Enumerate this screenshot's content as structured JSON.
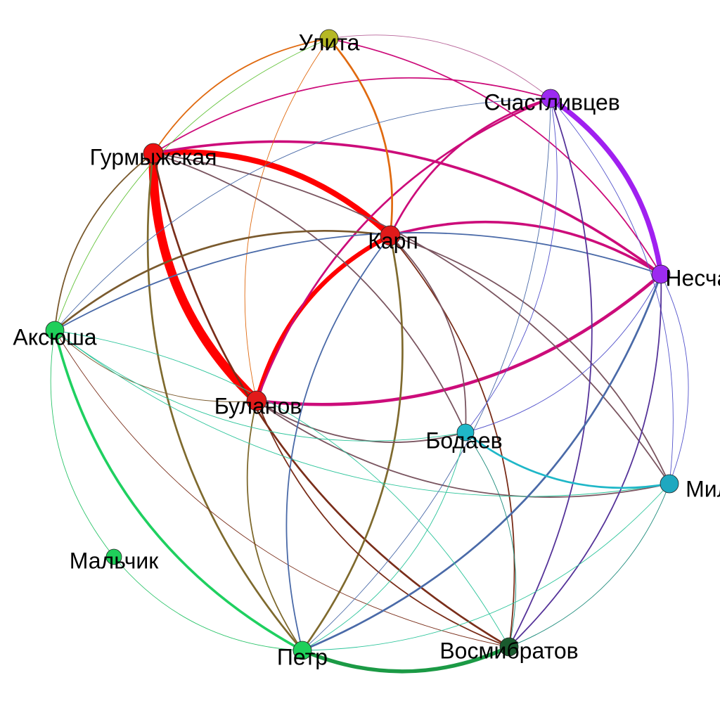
{
  "nodes": [
    {
      "id": "ulita",
      "label": "Улита",
      "color": "#b5b825"
    },
    {
      "id": "schast",
      "label": "Счастливцев",
      "color": "#9c2bf0"
    },
    {
      "id": "gurm",
      "label": "Гурмыжская",
      "color": "#ee1010"
    },
    {
      "id": "karp",
      "label": "Карп",
      "color": "#e11a1a"
    },
    {
      "id": "nesch",
      "label": "Несчастливцев",
      "color": "#9c2bf0"
    },
    {
      "id": "aks",
      "label": "Аксюша",
      "color": "#1fcf5a"
    },
    {
      "id": "bul",
      "label": "Буланов",
      "color": "#e11a1a"
    },
    {
      "id": "bod",
      "label": "Бодаев",
      "color": "#1fb7c8"
    },
    {
      "id": "mil",
      "label": "Милонов",
      "color": "#1fa8c0"
    },
    {
      "id": "malch",
      "label": "Мальчик",
      "color": "#1fcf5a"
    },
    {
      "id": "petr",
      "label": "Петр",
      "color": "#1fcf5a"
    },
    {
      "id": "vosm",
      "label": "Восмибратов",
      "color": "#1a5a2e"
    }
  ],
  "edges": [
    {
      "source": "gurm",
      "target": "bul",
      "weight": 14,
      "color": "#ff0000"
    },
    {
      "source": "gurm",
      "target": "karp",
      "weight": 9,
      "color": "#ff0000"
    },
    {
      "source": "karp",
      "target": "bul",
      "weight": 7,
      "color": "#ff0000"
    },
    {
      "source": "schast",
      "target": "nesch",
      "weight": 8,
      "color": "#a020f0"
    },
    {
      "source": "petr",
      "target": "vosm",
      "weight": 6,
      "color": "#1b9a45"
    },
    {
      "source": "gurm",
      "target": "nesch",
      "weight": 4,
      "color": "#cc0c7a"
    },
    {
      "source": "karp",
      "target": "nesch",
      "weight": 4,
      "color": "#cc0c7a"
    },
    {
      "source": "bul",
      "target": "nesch",
      "weight": 5,
      "color": "#cc0c7a"
    },
    {
      "source": "bul",
      "target": "schast",
      "weight": 3,
      "color": "#cc0c7a"
    },
    {
      "source": "karp",
      "target": "schast",
      "weight": 3,
      "color": "#cc0c7a"
    },
    {
      "source": "gurm",
      "target": "schast",
      "weight": 2,
      "color": "#cc0c7a"
    },
    {
      "source": "ulita",
      "target": "nesch",
      "weight": 2,
      "color": "#cc0c7a"
    },
    {
      "source": "ulita",
      "target": "schast",
      "weight": 1,
      "color": "#b8669a"
    },
    {
      "source": "ulita",
      "target": "karp",
      "weight": 3,
      "color": "#e06a10"
    },
    {
      "source": "ulita",
      "target": "gurm",
      "weight": 2,
      "color": "#e06a10"
    },
    {
      "source": "ulita",
      "target": "bul",
      "weight": 1,
      "color": "#e06a10"
    },
    {
      "source": "ulita",
      "target": "aks",
      "weight": 1,
      "color": "#63c33a"
    },
    {
      "source": "gurm",
      "target": "aks",
      "weight": 2,
      "color": "#7a5a2e"
    },
    {
      "source": "gurm",
      "target": "petr",
      "weight": 3,
      "color": "#7f6a2e"
    },
    {
      "source": "gurm",
      "target": "vosm",
      "weight": 3,
      "color": "#7a2e1a"
    },
    {
      "source": "gurm",
      "target": "bod",
      "weight": 2,
      "color": "#7a5560"
    },
    {
      "source": "gurm",
      "target": "mil",
      "weight": 2,
      "color": "#7a5560"
    },
    {
      "source": "karp",
      "target": "aks",
      "weight": 3,
      "color": "#7a5a2e"
    },
    {
      "source": "karp",
      "target": "petr",
      "weight": 3,
      "color": "#7f6a2e"
    },
    {
      "source": "karp",
      "target": "vosm",
      "weight": 2,
      "color": "#7a2e1a"
    },
    {
      "source": "karp",
      "target": "bod",
      "weight": 2,
      "color": "#7a5560"
    },
    {
      "source": "karp",
      "target": "mil",
      "weight": 2,
      "color": "#7a5560"
    },
    {
      "source": "bul",
      "target": "petr",
      "weight": 2,
      "color": "#7f6a2e"
    },
    {
      "source": "bul",
      "target": "vosm",
      "weight": 2,
      "color": "#7a2e1a"
    },
    {
      "source": "bul",
      "target": "bod",
      "weight": 2,
      "color": "#7a5560"
    },
    {
      "source": "bul",
      "target": "mil",
      "weight": 2,
      "color": "#7a5560"
    },
    {
      "source": "aks",
      "target": "bul",
      "weight": 1,
      "color": "#7a5a2e"
    },
    {
      "source": "aks",
      "target": "vosm",
      "weight": 1,
      "color": "#7a2e1a"
    },
    {
      "source": "aks",
      "target": "schast",
      "weight": 1,
      "color": "#4a6aa8"
    },
    {
      "source": "aks",
      "target": "nesch",
      "weight": 2,
      "color": "#4a6aa8"
    },
    {
      "source": "aks",
      "target": "petr",
      "weight": 4,
      "color": "#1fd060"
    },
    {
      "source": "aks",
      "target": "malch",
      "weight": 1,
      "color": "#2bc46a"
    },
    {
      "source": "aks",
      "target": "bod",
      "weight": 1,
      "color": "#2bc49a"
    },
    {
      "source": "aks",
      "target": "mil",
      "weight": 1,
      "color": "#2bc49a"
    },
    {
      "source": "malch",
      "target": "petr",
      "weight": 1,
      "color": "#2bc46a"
    },
    {
      "source": "karp",
      "target": "petr",
      "weight": 2,
      "color": "#4a6aa8"
    },
    {
      "source": "schast",
      "target": "petr",
      "weight": 1,
      "color": "#4a6aa8"
    },
    {
      "source": "schast",
      "target": "vosm",
      "weight": 2,
      "color": "#553399"
    },
    {
      "source": "schast",
      "target": "bod",
      "weight": 1,
      "color": "#5555cc"
    },
    {
      "source": "schast",
      "target": "mil",
      "weight": 1,
      "color": "#5555cc"
    },
    {
      "source": "nesch",
      "target": "petr",
      "weight": 3,
      "color": "#4a6aa8"
    },
    {
      "source": "nesch",
      "target": "vosm",
      "weight": 2,
      "color": "#553399"
    },
    {
      "source": "nesch",
      "target": "bod",
      "weight": 1,
      "color": "#5555cc"
    },
    {
      "source": "nesch",
      "target": "mil",
      "weight": 1,
      "color": "#5555cc"
    },
    {
      "source": "bod",
      "target": "mil",
      "weight": 3,
      "color": "#1fb7c8"
    },
    {
      "source": "bod",
      "target": "petr",
      "weight": 1,
      "color": "#2bc49a"
    },
    {
      "source": "bod",
      "target": "vosm",
      "weight": 1,
      "color": "#1a8a7a"
    },
    {
      "source": "mil",
      "target": "vosm",
      "weight": 1,
      "color": "#1a8a7a"
    },
    {
      "source": "mil",
      "target": "petr",
      "weight": 1,
      "color": "#2bc49a"
    },
    {
      "source": "vosm",
      "target": "aks",
      "weight": 1,
      "color": "#2bc49a"
    }
  ]
}
